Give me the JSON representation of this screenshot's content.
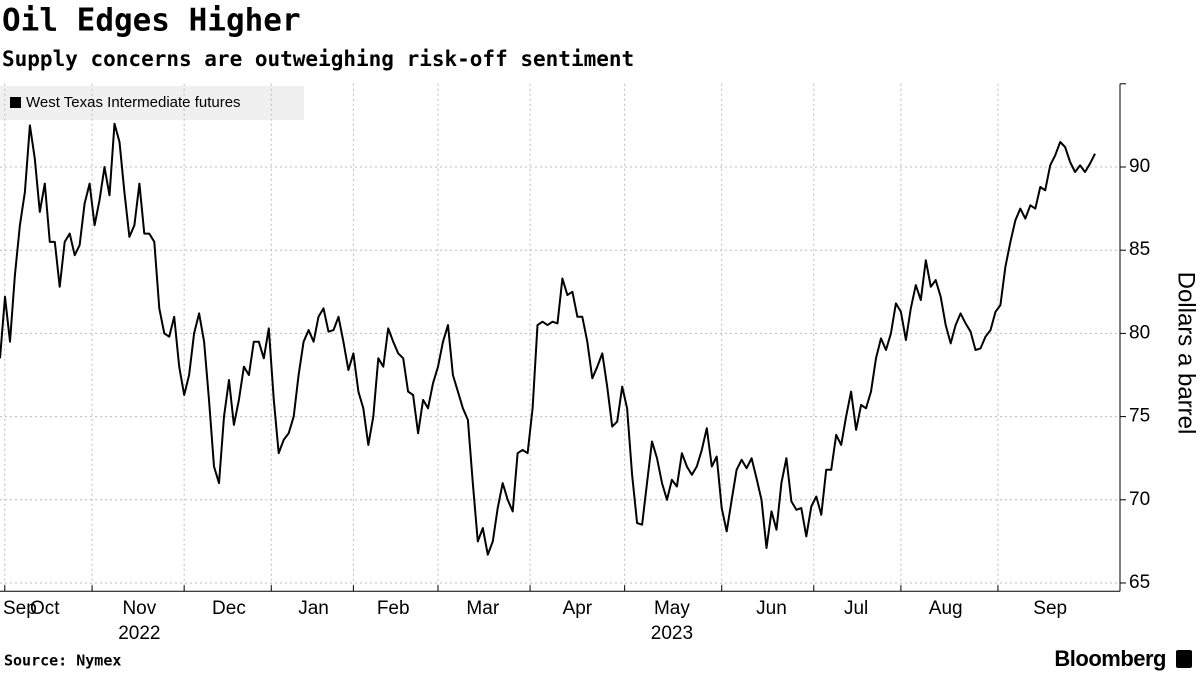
{
  "chart_data": {
    "type": "line",
    "title": "Oil Edges Higher",
    "subtitle": "Supply concerns are outweighing risk-off sentiment",
    "y_label": "Dollars a barrel",
    "source": "Source: Nymex",
    "brand": "Bloomberg",
    "ylim": [
      64.5,
      95
    ],
    "yticks": [
      65,
      70,
      75,
      80,
      85,
      90
    ],
    "grid": true,
    "legend": "top-left",
    "categories": [
      null,
      null,
      null,
      null,
      "Sep",
      null,
      null,
      null,
      null,
      "Oct",
      null,
      null,
      null,
      null,
      null,
      null,
      null,
      null,
      null,
      null,
      null,
      null,
      null,
      null,
      null,
      null,
      null,
      null,
      "Nov",
      null,
      null,
      null,
      null,
      null,
      null,
      null,
      null,
      null,
      null,
      null,
      null,
      null,
      null,
      null,
      null,
      null,
      "Dec",
      null,
      null,
      null,
      null,
      null,
      null,
      null,
      null,
      null,
      null,
      null,
      null,
      null,
      null,
      null,
      null,
      "Jan",
      null,
      null,
      null,
      null,
      null,
      null,
      null,
      null,
      null,
      null,
      null,
      null,
      null,
      null,
      null,
      "Feb",
      null,
      null,
      null,
      null,
      null,
      null,
      null,
      null,
      null,
      null,
      null,
      null,
      null,
      null,
      null,
      null,
      null,
      "Mar",
      null,
      null,
      null,
      null,
      null,
      null,
      null,
      null,
      null,
      null,
      null,
      null,
      null,
      null,
      null,
      null,
      null,
      null,
      "Apr",
      null,
      null,
      null,
      null,
      null,
      null,
      null,
      null,
      null,
      null,
      null,
      null,
      null,
      null,
      null,
      null,
      null,
      null,
      "May",
      null,
      null,
      null,
      null,
      null,
      null,
      null,
      null,
      null,
      null,
      null,
      null,
      null,
      null,
      null,
      null,
      null,
      null,
      null,
      "Jun",
      null,
      null,
      null,
      null,
      null,
      null,
      null,
      null,
      null,
      null,
      null,
      null,
      null,
      null,
      null,
      null,
      "Jul",
      null,
      null,
      null,
      null,
      null,
      null,
      null,
      null,
      null,
      null,
      null,
      null,
      null,
      null,
      null,
      null,
      null,
      "Aug",
      null,
      null,
      null,
      null,
      null,
      null,
      null,
      null,
      null,
      null,
      null,
      null,
      null,
      null,
      null,
      null,
      null,
      null,
      null,
      null,
      "Sep",
      null,
      null,
      null,
      null,
      null,
      null,
      null,
      null,
      null
    ],
    "category_years": [
      null,
      null,
      null,
      null,
      null,
      null,
      null,
      null,
      null,
      null,
      null,
      null,
      null,
      null,
      null,
      null,
      null,
      null,
      null,
      null,
      null,
      null,
      null,
      null,
      null,
      null,
      null,
      null,
      "2022",
      null,
      null,
      null,
      null,
      null,
      null,
      null,
      null,
      null,
      null,
      null,
      null,
      null,
      null,
      null,
      null,
      null,
      null,
      null,
      null,
      null,
      null,
      null,
      null,
      null,
      null,
      null,
      null,
      null,
      null,
      null,
      null,
      null,
      null,
      null,
      null,
      null,
      null,
      null,
      null,
      null,
      null,
      null,
      null,
      null,
      null,
      null,
      null,
      null,
      null,
      null,
      null,
      null,
      null,
      null,
      null,
      null,
      null,
      null,
      null,
      null,
      null,
      null,
      null,
      null,
      null,
      null,
      null,
      null,
      null,
      null,
      null,
      null,
      null,
      null,
      null,
      null,
      null,
      null,
      null,
      null,
      null,
      null,
      null,
      null,
      null,
      null,
      null,
      null,
      null,
      null,
      null,
      null,
      null,
      null,
      null,
      null,
      null,
      null,
      null,
      null,
      null,
      null,
      null,
      null,
      null,
      "2023",
      null,
      null,
      null,
      null,
      null,
      null,
      null,
      null,
      null,
      null,
      null,
      null,
      null,
      null,
      null,
      null,
      null,
      null,
      null,
      null,
      null,
      null,
      null,
      null,
      null,
      null,
      null,
      null,
      null,
      null,
      null,
      null,
      null,
      null,
      null,
      null,
      null,
      null,
      null,
      null,
      null,
      null,
      null,
      null,
      null,
      null,
      null,
      null,
      null,
      null,
      null,
      null,
      null,
      null,
      null,
      null,
      null,
      null,
      null,
      null,
      null,
      null,
      null,
      null,
      null,
      null,
      null,
      null,
      null,
      null,
      null,
      null,
      null,
      null,
      null,
      null,
      null,
      null,
      null,
      null,
      null,
      null,
      null,
      null,
      null
    ],
    "series": [
      {
        "name": "West Texas Intermediate futures",
        "color": "#000000",
        "values": [
          78.5,
          82.2,
          79.5,
          83.5,
          86.5,
          88.5,
          92.5,
          90.5,
          87.3,
          89,
          85.5,
          85.5,
          82.8,
          85.5,
          86,
          84.7,
          85.3,
          87.8,
          89,
          86.5,
          88,
          90,
          88.3,
          92.6,
          91.5,
          88.5,
          85.8,
          86.5,
          89,
          86,
          86,
          85.5,
          81.5,
          80,
          79.8,
          81,
          78,
          76.3,
          77.5,
          80,
          81.2,
          79.5,
          76,
          72,
          71,
          75,
          77.2,
          74.5,
          76,
          78,
          77.5,
          79.5,
          79.5,
          78.5,
          80.3,
          76,
          72.8,
          73.6,
          74,
          75,
          77.5,
          79.5,
          80.2,
          79.5,
          81,
          81.5,
          80.1,
          80.2,
          81,
          79.5,
          77.8,
          78.8,
          76.5,
          75.5,
          73.3,
          75,
          78.5,
          78,
          80.3,
          79.5,
          78.8,
          78.5,
          76.5,
          76.3,
          74,
          76,
          75.5,
          77,
          78,
          79.5,
          80.5,
          77.5,
          76.5,
          75.5,
          74.8,
          71,
          67.5,
          68.3,
          66.7,
          67.5,
          69.5,
          71,
          70,
          69.3,
          72.8,
          73,
          72.8,
          75.5,
          80.5,
          80.7,
          80.5,
          80.7,
          80.6,
          83.3,
          82.3,
          82.5,
          81,
          81,
          79.5,
          77.3,
          78,
          78.8,
          76.8,
          74.4,
          74.7,
          76.8,
          75.5,
          71.5,
          68.6,
          68.5,
          71,
          73.5,
          72.5,
          71,
          70,
          71.2,
          70.8,
          72.8,
          72,
          71.5,
          72,
          73,
          74.3,
          72,
          72.6,
          69.5,
          68.1,
          70,
          71.8,
          72.4,
          71.9,
          72.5,
          71.3,
          70,
          67.1,
          69.3,
          68.2,
          71,
          72.5,
          69.9,
          69.4,
          69.5,
          67.8,
          69.6,
          70.2,
          69.1,
          71.8,
          71.8,
          73.9,
          73.3,
          75,
          76.5,
          74.2,
          75.7,
          75.5,
          76.5,
          78.5,
          79.7,
          79,
          80,
          81.8,
          81.3,
          79.6,
          81.5,
          82.9,
          82,
          84.4,
          82.8,
          83.2,
          82.2,
          80.5,
          79.4,
          80.5,
          81.2,
          80.6,
          80.1,
          79,
          79.1,
          79.8,
          80.2,
          81.3,
          81.7,
          84,
          85.5,
          86.8,
          87.5,
          86.9,
          87.7,
          87.5,
          88.8,
          88.6,
          90.1,
          90.7,
          91.5,
          91.2,
          90.3,
          89.7,
          90.1,
          89.7,
          90.2,
          90.8
        ]
      }
    ]
  }
}
